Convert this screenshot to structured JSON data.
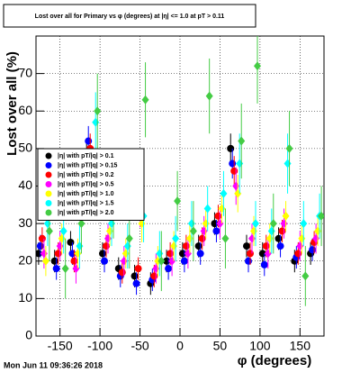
{
  "chart_data": {
    "type": "scatter",
    "title": "Lost over all for Primary vs φ (degrees) at |η| <= 1.0 at pT > 0.11",
    "xlabel": "φ (degrees)",
    "ylabel": "Lost over all (%)",
    "footer": "Mon Jun 11 09:36:26 2018",
    "xlim": [
      -180,
      180
    ],
    "ylim": [
      0,
      80
    ],
    "xticks": [
      -150,
      -100,
      -50,
      0,
      50,
      100,
      150
    ],
    "yticks": [
      0,
      10,
      20,
      30,
      40,
      50,
      60,
      70
    ],
    "grid": true,
    "legend": "upper-left",
    "x": [
      -170,
      -150,
      -130,
      -110,
      -90,
      -70,
      -50,
      -30,
      -10,
      10,
      30,
      50,
      70,
      90,
      110,
      130,
      150,
      170
    ],
    "series": [
      {
        "name": "|η| with pT/|q| > 0.1",
        "color": "#000000",
        "values": [
          22,
          20,
          25,
          48,
          22,
          18,
          16,
          14,
          20,
          22,
          24,
          30,
          50,
          24,
          22,
          26,
          20,
          22
        ],
        "errors": [
          3,
          3,
          3,
          4,
          3,
          3,
          3,
          3,
          3,
          3,
          3,
          3,
          4,
          3,
          3,
          3,
          3,
          3
        ]
      },
      {
        "name": "|η| with pT/|q| > 0.15",
        "color": "#0000ff",
        "values": [
          24,
          18,
          22,
          52,
          20,
          16,
          14,
          15,
          18,
          20,
          22,
          28,
          46,
          20,
          19,
          24,
          21,
          23
        ],
        "errors": [
          3,
          3,
          3,
          4,
          3,
          3,
          3,
          3,
          3,
          3,
          3,
          3,
          4,
          3,
          3,
          3,
          3,
          3
        ]
      },
      {
        "name": "|η| with pT/|q| > 0.2",
        "color": "#ff0000",
        "values": [
          26,
          22,
          20,
          50,
          24,
          17,
          18,
          16,
          22,
          24,
          26,
          32,
          44,
          22,
          24,
          28,
          22,
          25
        ],
        "errors": [
          3,
          3,
          3,
          4,
          3,
          3,
          3,
          3,
          3,
          3,
          3,
          3,
          4,
          3,
          3,
          3,
          3,
          3
        ]
      },
      {
        "name": "|η| with pT/|q| > 0.5",
        "color": "#ff00ff",
        "values": [
          22,
          24,
          18,
          44,
          26,
          20,
          34,
          18,
          20,
          22,
          28,
          30,
          40,
          26,
          22,
          30,
          24,
          26
        ],
        "errors": [
          4,
          4,
          4,
          5,
          4,
          4,
          5,
          4,
          4,
          4,
          4,
          4,
          5,
          4,
          4,
          4,
          4,
          4
        ]
      },
      {
        "name": "|η| with pT/|q| > 1.0",
        "color": "#ffff00",
        "values": [
          20,
          26,
          22,
          40,
          28,
          22,
          30,
          20,
          24,
          26,
          30,
          34,
          38,
          28,
          26,
          32,
          26,
          28
        ],
        "errors": [
          4,
          4,
          4,
          5,
          4,
          4,
          5,
          4,
          4,
          4,
          4,
          4,
          5,
          4,
          4,
          4,
          4,
          4
        ]
      },
      {
        "name": "|η| with pT/|q| > 1.5",
        "color": "#00ffff",
        "values": [
          30,
          28,
          24,
          57,
          30,
          24,
          32,
          22,
          26,
          30,
          34,
          38,
          46,
          30,
          28,
          46,
          30,
          32
        ],
        "errors": [
          6,
          6,
          6,
          8,
          6,
          6,
          7,
          6,
          6,
          6,
          6,
          6,
          8,
          6,
          6,
          8,
          6,
          6
        ]
      },
      {
        "name": "|η| with pT/|q| > 2.0",
        "color": "#44cc44",
        "values": [
          28,
          18,
          30,
          60,
          34,
          26,
          63,
          20,
          36,
          28,
          64,
          26,
          52,
          72,
          30,
          50,
          16,
          32
        ],
        "errors": [
          8,
          8,
          8,
          10,
          8,
          8,
          10,
          8,
          8,
          8,
          10,
          8,
          10,
          10,
          8,
          10,
          8,
          8
        ]
      }
    ]
  }
}
